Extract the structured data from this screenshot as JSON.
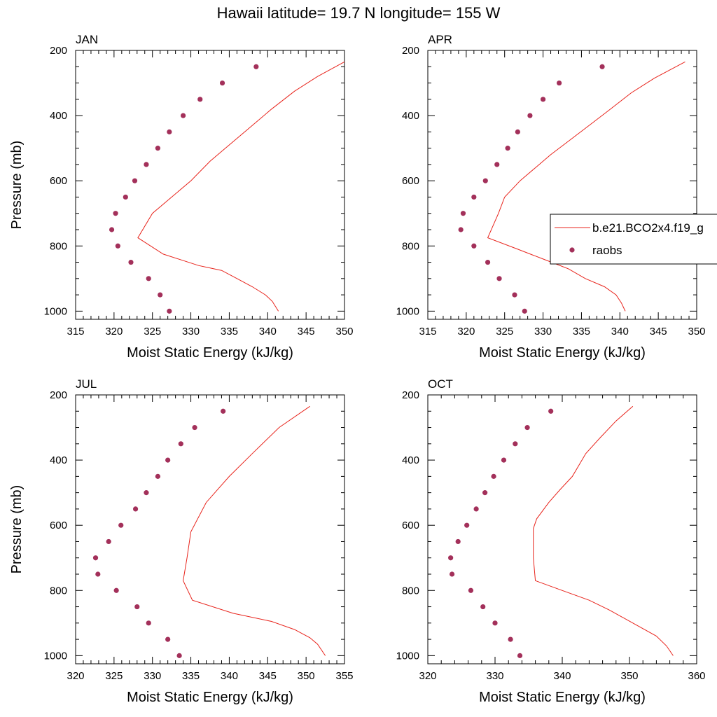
{
  "figure": {
    "title": "Hawaii  latitude= 19.7 N longitude= 155 W"
  },
  "legend": {
    "model_label": "b.e21.BCO2x4.f19_g",
    "obs_label": "raobs",
    "model_color": "#e8241c",
    "obs_color": "#a3305a"
  },
  "chart_data": [
    {
      "type": "line",
      "title": "JAN",
      "xlabel": "Moist Static Energy (kJ/kg)",
      "ylabel": "Pressure (mb)",
      "xlim": [
        315,
        350
      ],
      "ylim": [
        200,
        1025
      ],
      "y_reversed": true,
      "xticks": [
        "315",
        "320",
        "325",
        "330",
        "335",
        "340",
        "345",
        "350"
      ],
      "yticks": [
        "200",
        "400",
        "600",
        "800",
        "1000"
      ],
      "model": {
        "name": "b.e21.BCO2x4.f19_g",
        "x": [
          350.0,
          346.5,
          343.5,
          340.5,
          337.5,
          335.0,
          332.5,
          330.0,
          327.5,
          325.0,
          323.1,
          326.4,
          331.0,
          334.0,
          336.0,
          338.0,
          339.7,
          340.6,
          341.4
        ],
        "y": [
          235,
          280,
          325,
          380,
          440,
          490,
          540,
          600,
          650,
          700,
          775,
          825,
          860,
          875,
          900,
          925,
          950,
          970,
          1000
        ]
      },
      "obs": {
        "name": "raobs",
        "x": [
          338.5,
          334.1,
          331.2,
          329.0,
          327.2,
          325.7,
          324.2,
          322.7,
          321.5,
          320.2,
          319.7,
          320.5,
          322.2,
          324.5,
          326.0,
          327.2
        ],
        "y": [
          250,
          300,
          350,
          400,
          450,
          500,
          550,
          600,
          650,
          700,
          750,
          800,
          850,
          900,
          950,
          1000
        ]
      }
    },
    {
      "type": "line",
      "title": "APR",
      "xlabel": "Moist Static Energy (kJ/kg)",
      "ylabel": "",
      "xlim": [
        315,
        350
      ],
      "ylim": [
        200,
        1025
      ],
      "y_reversed": true,
      "xticks": [
        "315",
        "320",
        "325",
        "330",
        "335",
        "340",
        "345",
        "350"
      ],
      "yticks": [
        "200",
        "400",
        "600",
        "800",
        "1000"
      ],
      "model": {
        "name": "b.e21.BCO2x4.f19_g",
        "x": [
          348.5,
          344.5,
          341.5,
          338.5,
          336.0,
          333.5,
          331.0,
          329.0,
          327.0,
          325.0,
          324.2,
          322.8,
          326.7,
          330.0,
          333.3,
          335.5,
          338.0,
          339.5,
          340.2,
          340.7
        ],
        "y": [
          235,
          285,
          330,
          385,
          430,
          475,
          520,
          560,
          600,
          650,
          700,
          775,
          810,
          840,
          870,
          900,
          925,
          950,
          975,
          1000
        ]
      },
      "obs": {
        "name": "raobs",
        "x": [
          337.7,
          332.1,
          330.0,
          328.3,
          326.7,
          325.4,
          324.0,
          322.5,
          321.0,
          319.6,
          319.3,
          321.0,
          322.8,
          324.3,
          326.3,
          327.6
        ],
        "y": [
          250,
          300,
          350,
          400,
          450,
          500,
          550,
          600,
          650,
          700,
          750,
          800,
          850,
          900,
          950,
          1000
        ]
      }
    },
    {
      "type": "line",
      "title": "JUL",
      "xlabel": "Moist Static Energy (kJ/kg)",
      "ylabel": "Pressure (mb)",
      "xlim": [
        320,
        355
      ],
      "ylim": [
        200,
        1025
      ],
      "y_reversed": true,
      "xticks": [
        "320",
        "325",
        "330",
        "335",
        "340",
        "345",
        "350",
        "355"
      ],
      "yticks": [
        "200",
        "400",
        "600",
        "800",
        "1000"
      ],
      "model": {
        "name": "b.e21.BCO2x4.f19_g",
        "x": [
          350.5,
          346.5,
          343.0,
          340.0,
          337.0,
          335.0,
          334.5,
          334.0,
          335.2,
          340.5,
          345.5,
          348.5,
          350.5,
          351.5,
          352.5
        ],
        "y": [
          235,
          300,
          380,
          450,
          530,
          620,
          700,
          770,
          830,
          870,
          895,
          920,
          945,
          965,
          1000
        ]
      },
      "obs": {
        "name": "raobs",
        "x": [
          339.2,
          335.5,
          333.7,
          332.0,
          330.7,
          329.2,
          327.8,
          325.9,
          324.3,
          322.6,
          322.9,
          325.3,
          328.0,
          329.5,
          332.0,
          333.5
        ],
        "y": [
          250,
          300,
          350,
          400,
          450,
          500,
          550,
          600,
          650,
          700,
          750,
          800,
          850,
          900,
          950,
          1000
        ]
      }
    },
    {
      "type": "line",
      "title": "OCT",
      "xlabel": "Moist Static Energy (kJ/kg)",
      "ylabel": "",
      "xlim": [
        320,
        360
      ],
      "ylim": [
        200,
        1025
      ],
      "y_reversed": true,
      "xticks": [
        "320",
        "330",
        "340",
        "350",
        "360"
      ],
      "yticks": [
        "200",
        "400",
        "600",
        "800",
        "1000"
      ],
      "model": {
        "name": "b.e21.BCO2x4.f19_g",
        "x": [
          350.5,
          348.0,
          345.7,
          343.5,
          341.5,
          339.7,
          338.0,
          336.2,
          335.7,
          335.7,
          336.0,
          340.0,
          344.0,
          347.0,
          350.5,
          354.0,
          355.5,
          356.5
        ],
        "y": [
          235,
          280,
          330,
          380,
          450,
          490,
          530,
          580,
          610,
          700,
          770,
          800,
          830,
          860,
          900,
          940,
          970,
          1000
        ]
      },
      "obs": {
        "name": "raobs",
        "x": [
          338.3,
          334.8,
          333.0,
          331.3,
          329.8,
          328.5,
          327.2,
          325.8,
          324.5,
          323.4,
          323.6,
          326.4,
          328.2,
          330.0,
          332.3,
          333.7
        ],
        "y": [
          250,
          300,
          350,
          400,
          450,
          500,
          550,
          600,
          650,
          700,
          750,
          800,
          850,
          900,
          950,
          1000
        ]
      }
    }
  ]
}
